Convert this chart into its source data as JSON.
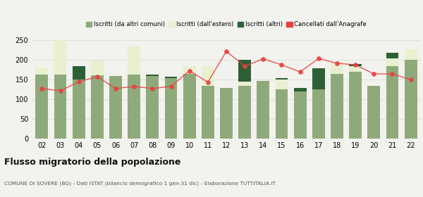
{
  "years": [
    "02",
    "03",
    "04",
    "05",
    "06",
    "07",
    "08",
    "09",
    "10",
    "11",
    "12",
    "13",
    "14",
    "15",
    "16",
    "17",
    "18",
    "19",
    "20",
    "21",
    "22"
  ],
  "iscritti_altri_comuni": [
    163,
    163,
    150,
    162,
    160,
    163,
    160,
    155,
    165,
    135,
    130,
    135,
    148,
    125,
    120,
    125,
    165,
    170,
    135,
    185,
    200
  ],
  "iscritti_estero": [
    18,
    87,
    0,
    37,
    0,
    72,
    0,
    0,
    20,
    50,
    0,
    10,
    0,
    25,
    0,
    0,
    30,
    15,
    0,
    20,
    28
  ],
  "iscritti_altri": [
    0,
    0,
    35,
    0,
    0,
    0,
    3,
    3,
    0,
    0,
    0,
    55,
    0,
    5,
    10,
    55,
    0,
    5,
    0,
    13,
    0
  ],
  "cancellati": [
    128,
    122,
    145,
    158,
    128,
    133,
    128,
    133,
    173,
    144,
    222,
    185,
    203,
    188,
    170,
    204,
    192,
    188,
    165,
    165,
    150
  ],
  "color_altri_comuni": "#8faa7a",
  "color_estero": "#e8f0d0",
  "color_altri": "#2d6035",
  "color_cancellati": "#e84040",
  "bg_color": "#f2f2ee",
  "grid_color": "#cccccc",
  "title": "Flusso migratorio della popolazione",
  "subtitle": "COMUNE DI SOVERE (BG) - Dati ISTAT (bilancio demografico 1 gen-31 dic) - Elaborazione TUTTITALIA.IT",
  "legend_label_0": "Iscritti (da altri comuni)",
  "legend_label_1": "Iscritti (dall'estero)",
  "legend_label_2": "Iscritti (altri)",
  "legend_label_3": "Cancellati dall'Anagrafe",
  "ylim_max": 260,
  "yticks": [
    0,
    50,
    100,
    150,
    200,
    250
  ]
}
